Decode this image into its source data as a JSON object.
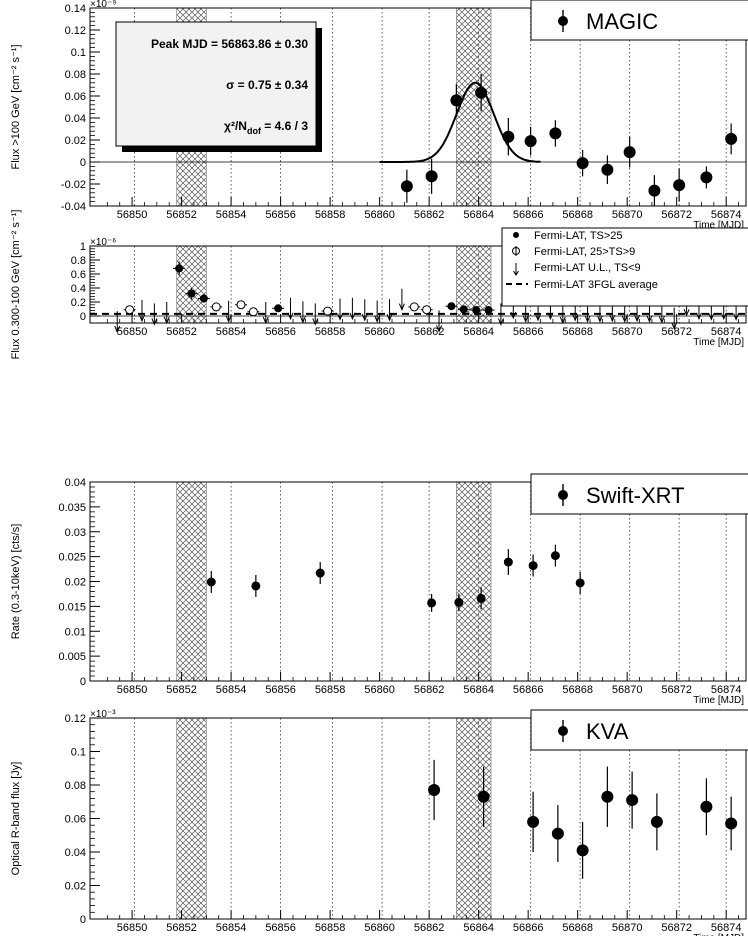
{
  "chart_data": [
    {
      "type": "scatter",
      "panel": "MAGIC",
      "ylabel": "Flux >100 GeV [cm⁻² s⁻¹]",
      "xlabel": "Time [MJD]",
      "exponent": "×10⁻⁹",
      "xlim": [
        56848.3,
        56874.8
      ],
      "ylim": [
        -0.04,
        0.14
      ],
      "yticks": [
        "-0.04",
        "-0.02",
        "0",
        "0.02",
        "0.04",
        "0.06",
        "0.08",
        "0.1",
        "0.12",
        "0.14"
      ],
      "legend": [
        "MAGIC"
      ],
      "fit_box": {
        "peak": "Peak MJD = 56863.86 ± 0.30",
        "sigma": "σ = 0.75 ± 0.34",
        "chi2": "χ²/N",
        "chi2_sub": "dof",
        "chi2_val": " = 4.6 / 3"
      },
      "gaussian_fit": {
        "amplitude": 0.072,
        "mean": 56863.86,
        "sigma": 0.75,
        "x_range": [
          56860.0,
          56866.5
        ]
      },
      "points": [
        {
          "x": 56861.1,
          "y": -0.022,
          "yerr": 0.015
        },
        {
          "x": 56862.1,
          "y": -0.013,
          "yerr": 0.016
        },
        {
          "x": 56863.1,
          "y": 0.056,
          "yerr": 0.015
        },
        {
          "x": 56864.1,
          "y": 0.063,
          "yerr": 0.017
        },
        {
          "x": 56865.2,
          "y": 0.023,
          "yerr": 0.017
        },
        {
          "x": 56866.1,
          "y": 0.019,
          "yerr": 0.013
        },
        {
          "x": 56867.1,
          "y": 0.026,
          "yerr": 0.012
        },
        {
          "x": 56868.2,
          "y": -0.001,
          "yerr": 0.012
        },
        {
          "x": 56869.2,
          "y": -0.007,
          "yerr": 0.013
        },
        {
          "x": 56870.1,
          "y": 0.009,
          "yerr": 0.014
        },
        {
          "x": 56871.1,
          "y": -0.026,
          "yerr": 0.014
        },
        {
          "x": 56872.1,
          "y": -0.021,
          "yerr": 0.015
        },
        {
          "x": 56873.2,
          "y": -0.014,
          "yerr": 0.01
        },
        {
          "x": 56874.2,
          "y": 0.021,
          "yerr": 0.014
        }
      ]
    },
    {
      "type": "scatter",
      "panel": "Fermi-LAT",
      "ylabel": "Flux 0.300-100 GeV [cm⁻² s⁻¹]",
      "xlabel": "Time [MJD]",
      "exponent": "×10⁻⁶",
      "xlim": [
        56848.3,
        56874.8
      ],
      "ylim": [
        -0.1,
        1.0
      ],
      "yticks": [
        "0",
        "0.2",
        "0.4",
        "0.6",
        "0.8",
        "1"
      ],
      "legend": [
        "Fermi-LAT, TS>25",
        "Fermi-LAT, 25>TS>9",
        "Fermi-LAT U.L., TS<9",
        "Fermi-LAT 3FGL average"
      ],
      "average": 0.03,
      "points_ts25": [
        {
          "x": 56851.9,
          "y": 0.68,
          "yerr": 0.1
        },
        {
          "x": 56852.4,
          "y": 0.32,
          "yerr": 0.08
        },
        {
          "x": 56852.9,
          "y": 0.25,
          "yerr": 0.06
        },
        {
          "x": 56855.9,
          "y": 0.11,
          "yerr": 0.04
        },
        {
          "x": 56862.9,
          "y": 0.14,
          "yerr": 0.03
        },
        {
          "x": 56863.4,
          "y": 0.095,
          "yerr": 0.03
        },
        {
          "x": 56863.9,
          "y": 0.085,
          "yerr": 0.03
        },
        {
          "x": 56864.4,
          "y": 0.085,
          "yerr": 0.03
        }
      ],
      "points_ts9": [
        {
          "x": 56849.9,
          "y": 0.09,
          "yerr": 0.05
        },
        {
          "x": 56853.4,
          "y": 0.13,
          "yerr": 0.06
        },
        {
          "x": 56854.4,
          "y": 0.16,
          "yerr": 0.06
        },
        {
          "x": 56854.9,
          "y": 0.06,
          "yerr": 0.03
        },
        {
          "x": 56857.9,
          "y": 0.07,
          "yerr": 0.04
        },
        {
          "x": 56861.4,
          "y": 0.13,
          "yerr": 0.05
        },
        {
          "x": 56861.9,
          "y": 0.09,
          "yerr": 0.04
        }
      ],
      "upper_limits": [
        {
          "x": 56849.4,
          "y": 0.07
        },
        {
          "x": 56850.4,
          "y": 0.23
        },
        {
          "x": 56850.9,
          "y": 0.18
        },
        {
          "x": 56851.4,
          "y": 0.2
        },
        {
          "x": 56853.9,
          "y": 0.22
        },
        {
          "x": 56855.4,
          "y": 0.2
        },
        {
          "x": 56856.4,
          "y": 0.26
        },
        {
          "x": 56856.9,
          "y": 0.21
        },
        {
          "x": 56857.4,
          "y": 0.18
        },
        {
          "x": 56858.4,
          "y": 0.25
        },
        {
          "x": 56858.9,
          "y": 0.26
        },
        {
          "x": 56859.4,
          "y": 0.24
        },
        {
          "x": 56859.9,
          "y": 0.22
        },
        {
          "x": 56860.4,
          "y": 0.24
        },
        {
          "x": 56860.9,
          "y": 0.39
        },
        {
          "x": 56862.4,
          "y": 0.08
        },
        {
          "x": 56864.9,
          "y": 0.18
        },
        {
          "x": 56865.4,
          "y": 0.27
        },
        {
          "x": 56865.9,
          "y": 0.22
        },
        {
          "x": 56866.4,
          "y": 0.24
        },
        {
          "x": 56866.9,
          "y": 0.26
        },
        {
          "x": 56867.4,
          "y": 0.2
        },
        {
          "x": 56867.9,
          "y": 0.24
        },
        {
          "x": 56868.4,
          "y": 0.22
        },
        {
          "x": 56868.9,
          "y": 0.22
        },
        {
          "x": 56869.4,
          "y": 0.23
        },
        {
          "x": 56869.9,
          "y": 0.22
        },
        {
          "x": 56870.4,
          "y": 0.23
        },
        {
          "x": 56870.9,
          "y": 0.22
        },
        {
          "x": 56871.4,
          "y": 0.21
        },
        {
          "x": 56871.9,
          "y": 0.12
        },
        {
          "x": 56872.4,
          "y": 0.31
        },
        {
          "x": 56872.9,
          "y": 0.26
        },
        {
          "x": 56873.4,
          "y": 0.25
        },
        {
          "x": 56873.9,
          "y": 0.26
        },
        {
          "x": 56874.4,
          "y": 0.25
        }
      ]
    },
    {
      "type": "scatter",
      "panel": "Swift-XRT",
      "ylabel": "Rate (0.3-10keV) [cts/s]",
      "xlabel": "Time [MJD]",
      "xlim": [
        56848.3,
        56874.8
      ],
      "ylim": [
        0,
        0.04
      ],
      "yticks": [
        "0",
        "0.005",
        "0.01",
        "0.015",
        "0.02",
        "0.025",
        "0.03",
        "0.035",
        "0.04"
      ],
      "legend": [
        "Swift-XRT"
      ],
      "points": [
        {
          "x": 56853.2,
          "y": 0.0199,
          "yerr": 0.0022
        },
        {
          "x": 56855.0,
          "y": 0.0191,
          "yerr": 0.0022
        },
        {
          "x": 56857.6,
          "y": 0.0217,
          "yerr": 0.0022
        },
        {
          "x": 56862.1,
          "y": 0.0157,
          "yerr": 0.0018
        },
        {
          "x": 56863.2,
          "y": 0.0158,
          "yerr": 0.0018
        },
        {
          "x": 56864.1,
          "y": 0.0166,
          "yerr": 0.0022
        },
        {
          "x": 56865.2,
          "y": 0.0239,
          "yerr": 0.0026
        },
        {
          "x": 56866.2,
          "y": 0.0232,
          "yerr": 0.0022
        },
        {
          "x": 56867.1,
          "y": 0.0252,
          "yerr": 0.0022
        },
        {
          "x": 56868.1,
          "y": 0.0197,
          "yerr": 0.0022
        }
      ]
    },
    {
      "type": "scatter",
      "panel": "KVA",
      "ylabel": "Optical R-band flux [Jy]",
      "xlabel": "Time [MJD]",
      "exponent": "×10⁻³",
      "xlim": [
        56848.3,
        56874.8
      ],
      "ylim": [
        0,
        0.12
      ],
      "yticks": [
        "0",
        "0.02",
        "0.04",
        "0.06",
        "0.08",
        "0.1",
        "0.12"
      ],
      "legend": [
        "KVA"
      ],
      "points": [
        {
          "x": 56862.2,
          "y": 0.077,
          "yerr": 0.018
        },
        {
          "x": 56864.2,
          "y": 0.073,
          "yerr": 0.018
        },
        {
          "x": 56866.2,
          "y": 0.058,
          "yerr": 0.018
        },
        {
          "x": 56867.2,
          "y": 0.051,
          "yerr": 0.017
        },
        {
          "x": 56868.2,
          "y": 0.041,
          "yerr": 0.017
        },
        {
          "x": 56869.2,
          "y": 0.073,
          "yerr": 0.018
        },
        {
          "x": 56870.2,
          "y": 0.071,
          "yerr": 0.017
        },
        {
          "x": 56871.2,
          "y": 0.058,
          "yerr": 0.017
        },
        {
          "x": 56873.2,
          "y": 0.067,
          "yerr": 0.017
        },
        {
          "x": 56874.2,
          "y": 0.057,
          "yerr": 0.016
        }
      ]
    }
  ],
  "shared": {
    "xticks": [
      "56850",
      "56852",
      "56854",
      "56856",
      "56858",
      "56860",
      "56862",
      "56864",
      "56866",
      "56868",
      "56870",
      "56872",
      "56874"
    ],
    "shaded_bands": [
      [
        56851.8,
        56853.0
      ],
      [
        56863.1,
        56864.5
      ]
    ],
    "dotted_lines": [
      56850.1,
      56854.0,
      56856.0,
      56858.1,
      56860.1,
      56862.0,
      56864.0,
      56866.1,
      56868.1,
      56870.1,
      56872.1,
      56874.0
    ]
  }
}
